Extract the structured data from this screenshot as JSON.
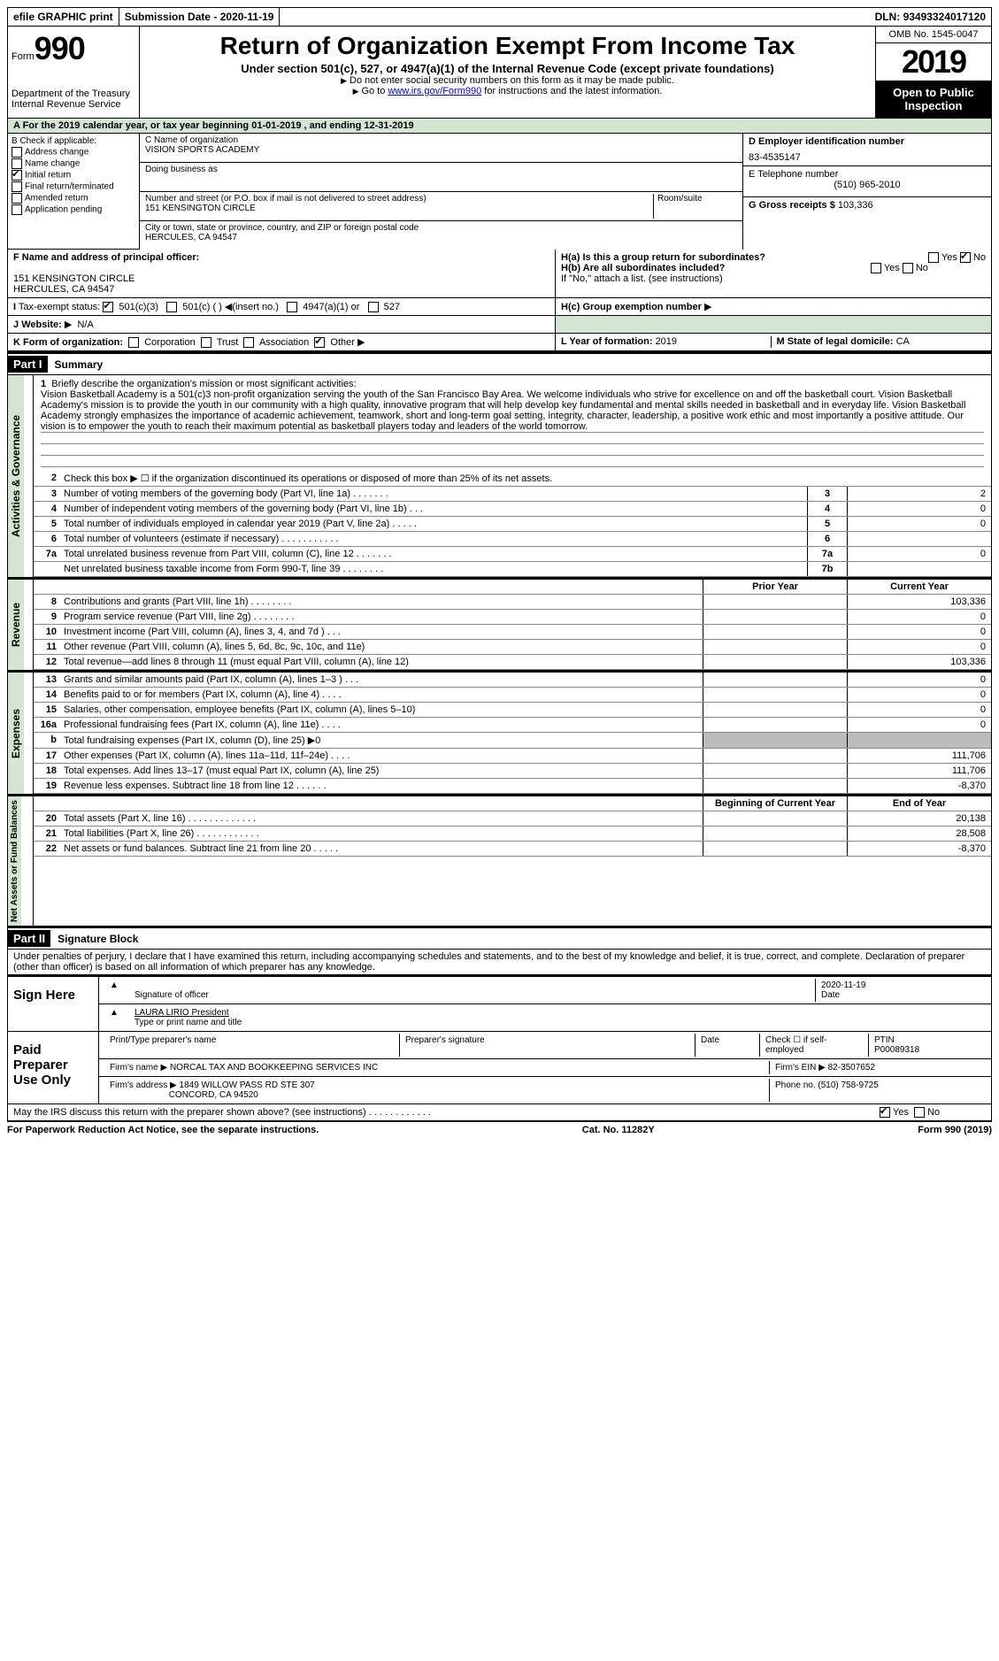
{
  "topbar": {
    "efile": "efile GRAPHIC print",
    "sub_label": "Submission Date - ",
    "sub_date": "2020-11-19",
    "dln_label": "DLN: ",
    "dln": "93493324017120"
  },
  "header": {
    "form_label": "Form",
    "form_no": "990",
    "dept": "Department of the Treasury Internal Revenue Service",
    "title": "Return of Organization Exempt From Income Tax",
    "subtitle": "Under section 501(c), 527, or 4947(a)(1) of the Internal Revenue Code (except private foundations)",
    "note1": "Do not enter social security numbers on this form as it may be made public.",
    "note2_pre": "Go to ",
    "note2_link": "www.irs.gov/Form990",
    "note2_post": " for instructions and the latest information.",
    "omb": "OMB No. 1545-0047",
    "year": "2019",
    "open": "Open to Public Inspection"
  },
  "row_a": {
    "text_pre": "A For the 2019 calendar year, or tax year beginning ",
    "begin": "01-01-2019",
    "mid": " , and ending ",
    "end": "12-31-2019"
  },
  "col_b": {
    "label": "B Check if applicable:",
    "items": [
      "Address change",
      "Name change",
      "Initial return",
      "Final return/terminated",
      "Amended return",
      "Application pending"
    ],
    "checked_idx": 2
  },
  "col_c": {
    "name_label": "C Name of organization",
    "name": "VISION SPORTS ACADEMY",
    "dba_label": "Doing business as",
    "addr_label": "Number and street (or P.O. box if mail is not delivered to street address)",
    "room_label": "Room/suite",
    "addr": "151 KENSINGTON CIRCLE",
    "city_label": "City or town, state or province, country, and ZIP or foreign postal code",
    "city": "HERCULES, CA  94547"
  },
  "col_d": {
    "ein_label": "D Employer identification number",
    "ein": "83-4535147",
    "tel_label": "E Telephone number",
    "tel": "(510) 965-2010",
    "gross_label": "G Gross receipts $ ",
    "gross": "103,336"
  },
  "sec_f": {
    "f_label": "F  Name and address of principal officer:",
    "f_addr1": "151 KENSINGTON CIRCLE",
    "f_addr2": "HERCULES, CA  94547",
    "i_label": "Tax-exempt status:",
    "i_501c3": "501(c)(3)",
    "i_501c": "501(c) (  )",
    "i_insert": "(insert no.)",
    "i_4947": "4947(a)(1) or",
    "i_527": "527",
    "j_label": "Website:",
    "j_val": "N/A"
  },
  "sec_h": {
    "ha": "H(a)  Is this a group return for subordinates?",
    "hb": "H(b)  Are all subordinates included?",
    "hb_note": "If \"No,\" attach a list. (see instructions)",
    "hc": "H(c)  Group exemption number",
    "yes": "Yes",
    "no": "No"
  },
  "row_k": {
    "k_label": "K Form of organization:",
    "opts": [
      "Corporation",
      "Trust",
      "Association",
      "Other"
    ],
    "l_label": "L Year of formation: ",
    "l_val": "2019",
    "m_label": "M State of legal domicile: ",
    "m_val": "CA"
  },
  "part1": {
    "label": "Part I",
    "title": "Summary"
  },
  "summary": {
    "q1_label": "Briefly describe the organization's mission or most significant activities:",
    "q1_text": "Vision Basketball Academy is a 501(c)3 non-profit organization serving the youth of the San Francisco Bay Area. We welcome individuals who strive for excellence on and off the basketball court. Vision Basketball Academy's mission is to provide the youth in our community with a high quality, innovative program that will help develop key fundamental and mental skills needed in basketball and in everyday life. Vision Basketball Academy strongly emphasizes the importance of academic achievement, teamwork, short and long-term goal setting, integrity, character, leadership, a positive work ethic and most importantly a positive attitude. Our vision is to empower the youth to reach their maximum potential as basketball players today and leaders of the world tomorrow.",
    "q2": "Check this box ▶ ☐ if the organization discontinued its operations or disposed of more than 25% of its net assets.",
    "rows_ag": [
      {
        "n": "3",
        "d": "Number of voting members of the governing body (Part VI, line 1a)   .    .    .    .    .    .    .",
        "c": "3",
        "v": "2"
      },
      {
        "n": "4",
        "d": "Number of independent voting members of the governing body (Part VI, line 1b)    .    .    .",
        "c": "4",
        "v": "0"
      },
      {
        "n": "5",
        "d": "Total number of individuals employed in calendar year 2019 (Part V, line 2a)   .    .    .    .    .",
        "c": "5",
        "v": "0"
      },
      {
        "n": "6",
        "d": "Total number of volunteers (estimate if necessary)    .    .    .    .    .    .    .    .    .    .    .",
        "c": "6",
        "v": ""
      },
      {
        "n": "7a",
        "d": "Total unrelated business revenue from Part VIII, column (C), line 12   .    .    .    .    .    .    .",
        "c": "7a",
        "v": "0"
      },
      {
        "n": "",
        "d": "Net unrelated business taxable income from Form 990-T, line 39    .    .    .    .    .    .    .    .",
        "c": "7b",
        "v": ""
      }
    ],
    "col_hdrs": {
      "prior": "Prior Year",
      "current": "Current Year",
      "begin": "Beginning of Current Year",
      "end": "End of Year"
    },
    "rows_rev": [
      {
        "n": "8",
        "d": "Contributions and grants (Part VIII, line 1h)   .    .    .    .    .    .    .    .",
        "p": "",
        "c": "103,336"
      },
      {
        "n": "9",
        "d": "Program service revenue (Part VIII, line 2g)   .    .    .    .    .    .    .    .",
        "p": "",
        "c": "0"
      },
      {
        "n": "10",
        "d": "Investment income (Part VIII, column (A), lines 3, 4, and 7d )    .    .    .",
        "p": "",
        "c": "0"
      },
      {
        "n": "11",
        "d": "Other revenue (Part VIII, column (A), lines 5, 6d, 8c, 9c, 10c, and 11e)",
        "p": "",
        "c": "0"
      },
      {
        "n": "12",
        "d": "Total revenue—add lines 8 through 11 (must equal Part VIII, column (A), line 12)",
        "p": "",
        "c": "103,336"
      }
    ],
    "rows_exp": [
      {
        "n": "13",
        "d": "Grants and similar amounts paid (Part IX, column (A), lines 1–3 )   .    .    .",
        "p": "",
        "c": "0"
      },
      {
        "n": "14",
        "d": "Benefits paid to or for members (Part IX, column (A), line 4)   .    .    .    .",
        "p": "",
        "c": "0"
      },
      {
        "n": "15",
        "d": "Salaries, other compensation, employee benefits (Part IX, column (A), lines 5–10)",
        "p": "",
        "c": "0"
      },
      {
        "n": "16a",
        "d": "Professional fundraising fees (Part IX, column (A), line 11e)   .    .    .    .",
        "p": "",
        "c": "0"
      },
      {
        "n": "b",
        "d": "Total fundraising expenses (Part IX, column (D), line 25) ▶0",
        "p": "grey",
        "c": "grey"
      },
      {
        "n": "17",
        "d": "Other expenses (Part IX, column (A), lines 11a–11d, 11f–24e)   .    .    .    .",
        "p": "",
        "c": "111,706"
      },
      {
        "n": "18",
        "d": "Total expenses. Add lines 13–17 (must equal Part IX, column (A), line 25)",
        "p": "",
        "c": "111,706"
      },
      {
        "n": "19",
        "d": "Revenue less expenses. Subtract line 18 from line 12   .    .    .    .    .    .",
        "p": "",
        "c": "-8,370"
      }
    ],
    "rows_net": [
      {
        "n": "20",
        "d": "Total assets (Part X, line 16)   .    .    .    .    .    .    .    .    .    .    .    .    .",
        "p": "",
        "c": "20,138"
      },
      {
        "n": "21",
        "d": "Total liabilities (Part X, line 26)   .    .    .    .    .    .    .    .    .    .    .    .",
        "p": "",
        "c": "28,508"
      },
      {
        "n": "22",
        "d": "Net assets or fund balances. Subtract line 21 from line 20   .    .    .    .    .",
        "p": "",
        "c": "-8,370"
      }
    ],
    "vlabels": {
      "ag": "Activities & Governance",
      "rev": "Revenue",
      "exp": "Expenses",
      "net": "Net Assets or Fund Balances"
    }
  },
  "part2": {
    "label": "Part II",
    "title": "Signature Block",
    "decl": "Under penalties of perjury, I declare that I have examined this return, including accompanying schedules and statements, and to the best of my knowledge and belief, it is true, correct, and complete. Declaration of preparer (other than officer) is based on all information of which preparer has any knowledge.",
    "sign_here": "Sign Here",
    "sig_officer": "Signature of officer",
    "date": "Date",
    "sig_date": "2020-11-19",
    "name_title": "LAURA LIRIO  President",
    "name_title_lbl": "Type or print name and title",
    "paid": "Paid Preparer Use Only",
    "prep_name": "Print/Type preparer's name",
    "prep_sig": "Preparer's signature",
    "prep_date": "Date",
    "check_se": "Check ☐ if self-employed",
    "ptin_lbl": "PTIN",
    "ptin": "P00089318",
    "firm_name_lbl": "Firm's name    ▶ ",
    "firm_name": "NORCAL TAX AND BOOKKEEPING SERVICES INC",
    "firm_ein_lbl": "Firm's EIN ▶ ",
    "firm_ein": "82-3507652",
    "firm_addr_lbl": "Firm's address ▶ ",
    "firm_addr1": "1849 WILLOW PASS RD STE 307",
    "firm_addr2": "CONCORD, CA  94520",
    "phone_lbl": "Phone no. ",
    "phone": "(510) 758-9725",
    "discuss": "May the IRS discuss this return with the preparer shown above? (see instructions)   .    .    .    .    .    .    .    .    .    .    .    ."
  },
  "footer": {
    "left": "For Paperwork Reduction Act Notice, see the separate instructions.",
    "mid": "Cat. No. 11282Y",
    "right": "Form 990 (2019)"
  }
}
